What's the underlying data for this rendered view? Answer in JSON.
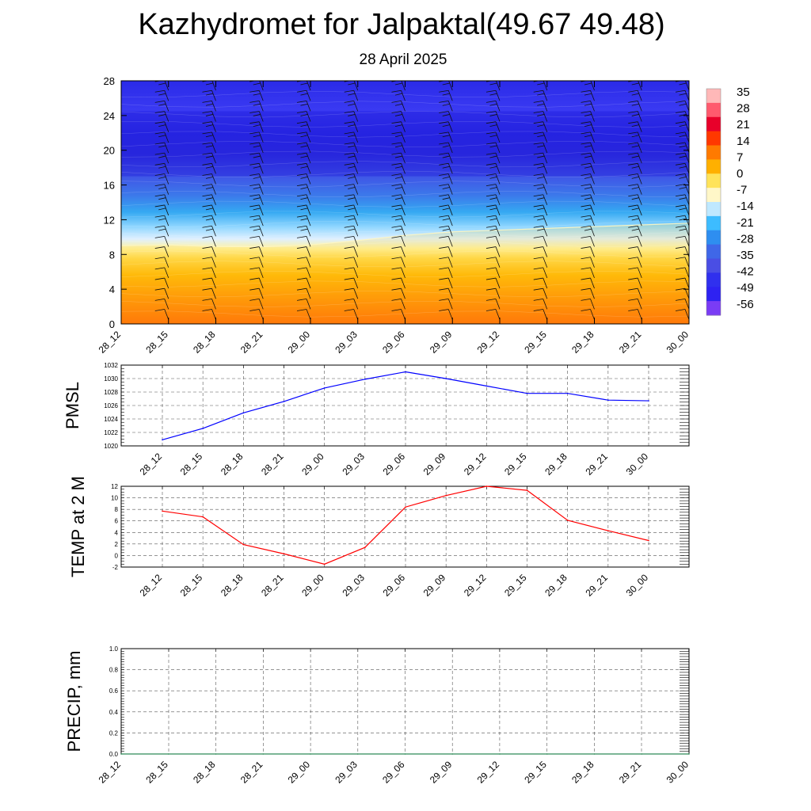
{
  "title": "Kazhydromet for Jalpaktal(49.67 49.48)",
  "subtitle": "28 April 2025",
  "colorbar": {
    "labels": [
      "35",
      "28",
      "21",
      "14",
      "7",
      "0",
      "-7",
      "-14",
      "-21",
      "-28",
      "-35",
      "-42",
      "-49",
      "-56"
    ]
  },
  "chart_data": [
    {
      "type": "heatmap",
      "name": "cross-section",
      "x": [
        "28_12",
        "28_15",
        "28_18",
        "28_21",
        "29_00",
        "29_03",
        "29_06",
        "29_09",
        "29_12",
        "29_15",
        "29_18",
        "29_21",
        "30_00"
      ],
      "yticks": [
        0,
        4,
        8,
        12,
        16,
        20,
        24,
        28
      ],
      "ylim": [
        0,
        28
      ],
      "freezing_level": [
        9.0,
        9.1,
        8.9,
        8.9,
        9.1,
        9.6,
        10.2,
        10.6,
        10.8,
        11.0,
        11.2,
        11.4,
        11.6
      ],
      "overlay": "wind barbs"
    },
    {
      "type": "line",
      "name": "pmsl",
      "ylabel": "PMSL",
      "x": [
        "28_12",
        "28_15",
        "28_18",
        "28_21",
        "29_00",
        "29_03",
        "29_06",
        "29_09",
        "29_12",
        "29_15",
        "29_18",
        "29_21",
        "30_00"
      ],
      "values": [
        1020.9,
        1022.6,
        1024.9,
        1026.6,
        1028.6,
        1029.9,
        1031.0,
        1030.0,
        1028.9,
        1027.8,
        1027.8,
        1026.8,
        1026.7
      ],
      "ylim": [
        1020,
        1032
      ],
      "yticks": [
        1020,
        1022,
        1024,
        1026,
        1028,
        1030,
        1032
      ],
      "color": "#0000ff",
      "grid": true
    },
    {
      "type": "line",
      "name": "temp",
      "ylabel": "TEMP at 2 M",
      "x": [
        "28_12",
        "28_15",
        "28_18",
        "28_21",
        "29_00",
        "29_03",
        "29_06",
        "29_09",
        "29_12",
        "29_15",
        "29_18",
        "29_21",
        "30_00"
      ],
      "values": [
        7.7,
        6.7,
        1.9,
        0.3,
        -1.5,
        1.4,
        8.4,
        10.4,
        12.0,
        11.3,
        6.1,
        4.3,
        2.6
      ],
      "ylim": [
        -2,
        12
      ],
      "yticks": [
        -2,
        0,
        2,
        4,
        6,
        8,
        10,
        12
      ],
      "color": "#ff0000",
      "grid": true
    },
    {
      "type": "line",
      "name": "precip",
      "ylabel": "PRECIP, mm",
      "x": [
        "28_12",
        "28_15",
        "28_18",
        "28_21",
        "29_00",
        "29_03",
        "29_06",
        "29_09",
        "29_12",
        "29_15",
        "29_18",
        "29_21",
        "30_00"
      ],
      "values": [
        0,
        0,
        0,
        0,
        0,
        0,
        0,
        0,
        0,
        0,
        0,
        0,
        0
      ],
      "ylim": [
        0,
        1.0
      ],
      "yticks": [
        "0.0",
        "0.2",
        "0.4",
        "0.6",
        "0.8",
        "1.0"
      ],
      "color": "#2e8b57",
      "grid": true
    }
  ]
}
